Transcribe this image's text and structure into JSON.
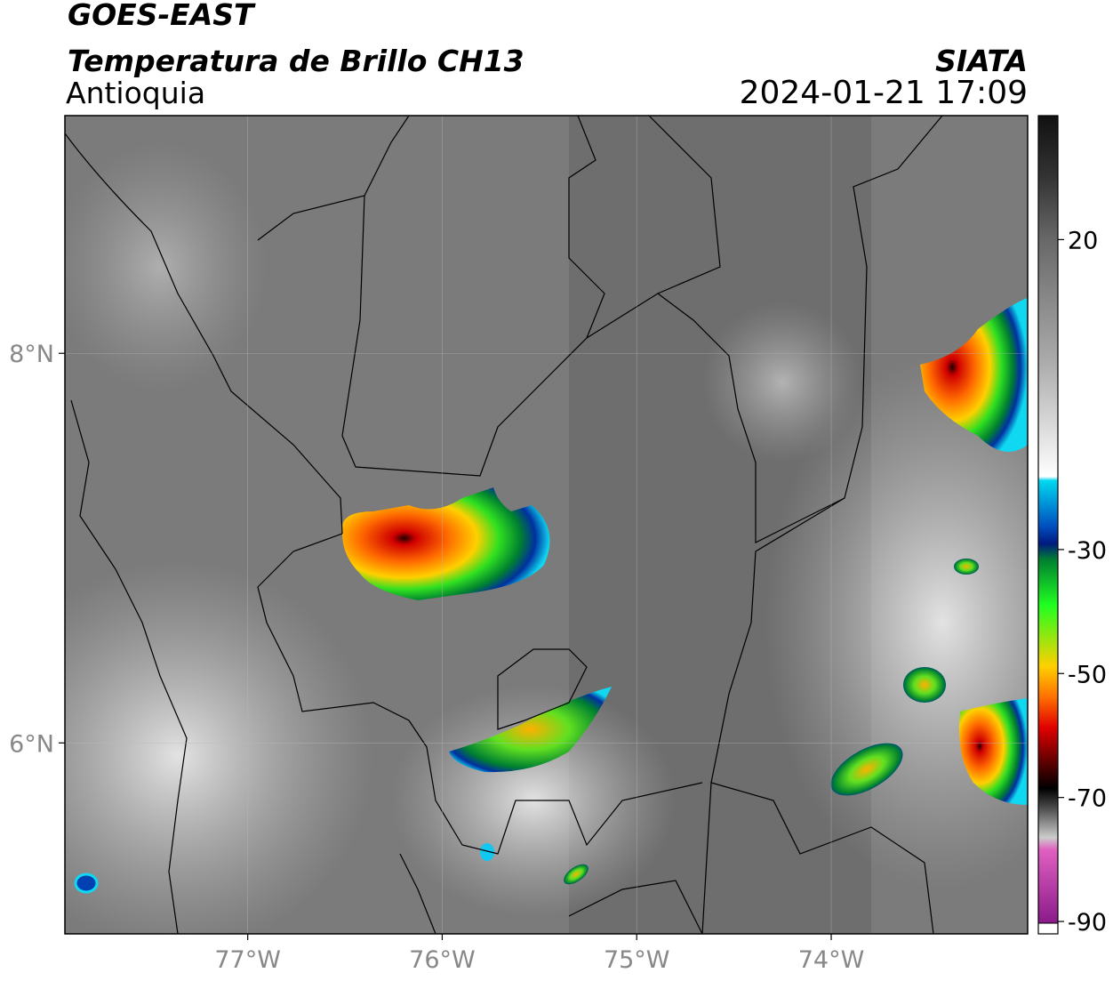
{
  "chart_data": {
    "type": "map",
    "title": "GOES-EAST",
    "subtitle": "Temperatura de Brillo CH13",
    "region": "Antioquia",
    "source": "SIATA",
    "datetime": "2024-01-21 17:09",
    "xlim": [
      -77.94,
      -72.99
    ],
    "ylim": [
      5.02,
      9.22
    ],
    "xticks": [
      {
        "value": -77,
        "label": "77°W"
      },
      {
        "value": -76,
        "label": "76°W"
      },
      {
        "value": -75,
        "label": "75°W"
      },
      {
        "value": -74,
        "label": "74°W"
      }
    ],
    "yticks": [
      {
        "value": 8,
        "label": "8°N"
      },
      {
        "value": 6,
        "label": "6°N"
      }
    ],
    "grid": true,
    "colorbar": {
      "lim": [
        -92,
        40
      ],
      "ticks": [
        20,
        -30,
        -50,
        -70,
        -90
      ]
    }
  }
}
